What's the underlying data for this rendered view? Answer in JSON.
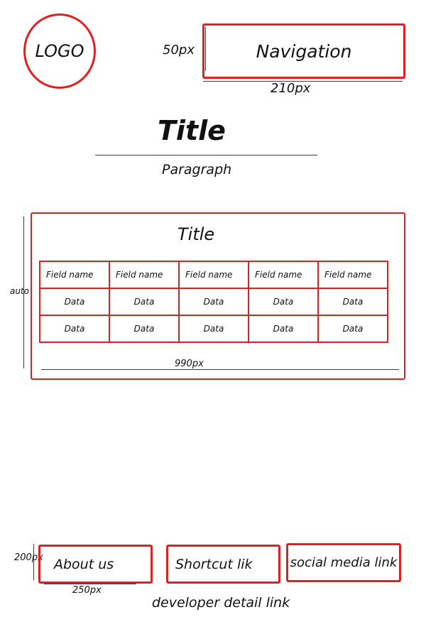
{
  "header": {
    "logo_label": "LOGO",
    "nav_label": "Navigation",
    "nav_height_label": "50px",
    "nav_width_label": "210px"
  },
  "hero": {
    "title": "Title",
    "paragraph": "Paragraph"
  },
  "panel": {
    "title": "Title",
    "height_label": "auto",
    "width_label": "990px",
    "table": {
      "headers": [
        "Field name",
        "Field name",
        "Field name",
        "Field name",
        "Field name"
      ],
      "rows": [
        [
          "Data",
          "Data",
          "Data",
          "Data",
          "Data"
        ],
        [
          "Data",
          "Data",
          "Data",
          "Data",
          "Data"
        ]
      ]
    }
  },
  "footer": {
    "about_label": "About us",
    "shortcut_label": "Shortcut lik",
    "social_label": "social media link",
    "height_label": "200px",
    "width_label": "250px",
    "developer_label": "developer detail link"
  },
  "colors": {
    "box_border": "#e02020",
    "line": "#3a3a4a"
  }
}
